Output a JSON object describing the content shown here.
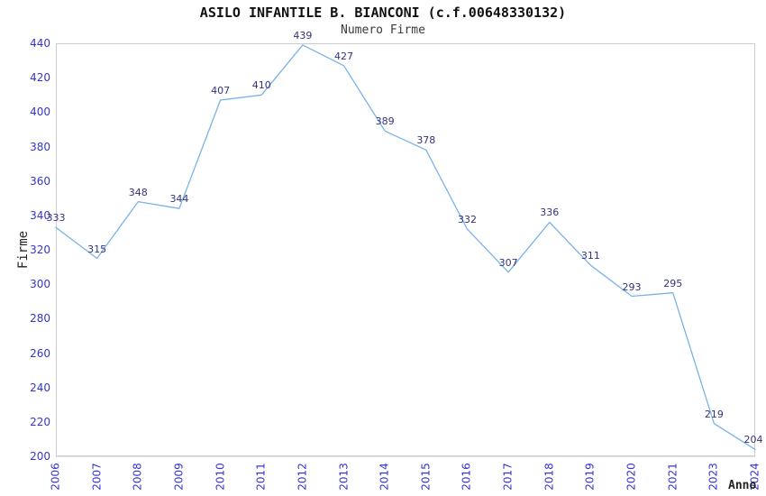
{
  "chart_data": {
    "type": "line",
    "title": "ASILO INFANTILE B. BIANCONI (c.f.00648330132)",
    "subtitle": "Numero Firme",
    "xlabel": "Anno",
    "ylabel": "Firme",
    "categories": [
      "2006",
      "2007",
      "2008",
      "2009",
      "2010",
      "2011",
      "2012",
      "2013",
      "2014",
      "2015",
      "2016",
      "2017",
      "2018",
      "2019",
      "2020",
      "2021",
      "2023",
      "2024"
    ],
    "values": [
      333,
      315,
      348,
      344,
      407,
      410,
      439,
      427,
      389,
      378,
      332,
      307,
      336,
      311,
      293,
      295,
      219,
      204
    ],
    "yticks": [
      200,
      220,
      240,
      260,
      280,
      300,
      320,
      340,
      360,
      380,
      400,
      420,
      440
    ],
    "ylim": [
      200,
      440
    ],
    "grid": "horizontal alternating bands",
    "legend": "none",
    "data_labels": true,
    "colors": {
      "line": "#79b2e8",
      "tick_label": "#3434cf",
      "point_label": "#32327e",
      "band": "#f2f2f2",
      "grid_line": "#e2e2e2",
      "plot_border": "#cccccc",
      "title": "#111111",
      "subtitle": "#3a3a3a",
      "axis_title": "#222222",
      "background": "#ffffff"
    }
  }
}
